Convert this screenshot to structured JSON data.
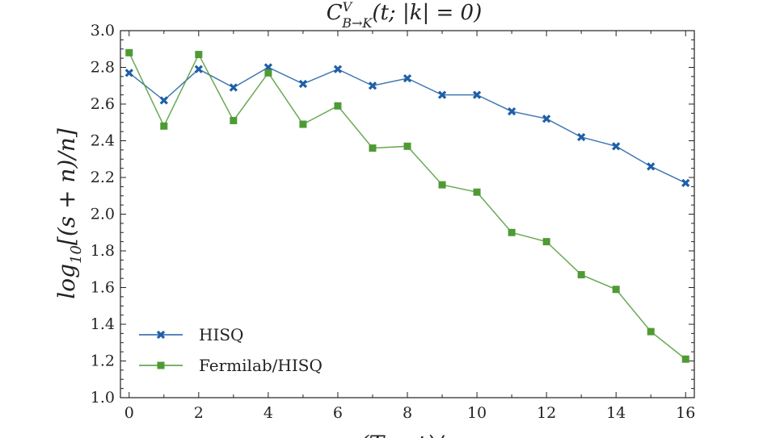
{
  "chart_data": {
    "type": "line",
    "title": "C^V_{B→K}(t; |k|=0)",
    "title_main": "C",
    "title_sup": "V",
    "title_sub": "B→K",
    "title_args": "(t; |k| = 0)",
    "xlabel": "(T − t)/a",
    "ylabel": "log10[(s+n)/n]",
    "ylabel_main": "log",
    "ylabel_sub": "10",
    "ylabel_rest": "[(s + n)/n]",
    "xlim": [
      -0.25,
      16.25
    ],
    "ylim": [
      1.0,
      3.0
    ],
    "xticks": [
      0,
      2,
      4,
      6,
      8,
      10,
      12,
      14,
      16
    ],
    "yticks": [
      1.0,
      1.2,
      1.4,
      1.6,
      1.8,
      2.0,
      2.2,
      2.4,
      2.6,
      2.8,
      3.0
    ],
    "grid": false,
    "legend_position": "bottom-left",
    "x": [
      0,
      1,
      2,
      3,
      4,
      5,
      6,
      7,
      8,
      9,
      10,
      11,
      12,
      13,
      14,
      15,
      16
    ],
    "series": [
      {
        "name": "HISQ",
        "color": "#1f5fa8",
        "marker": "x",
        "values": [
          2.77,
          2.62,
          2.79,
          2.69,
          2.8,
          2.71,
          2.79,
          2.7,
          2.74,
          2.65,
          2.65,
          2.56,
          2.52,
          2.42,
          2.37,
          2.26,
          2.17
        ]
      },
      {
        "name": "Fermilab/HISQ",
        "color": "#4f9a35",
        "marker": "square",
        "values": [
          2.88,
          2.48,
          2.87,
          2.51,
          2.77,
          2.49,
          2.59,
          2.36,
          2.37,
          2.16,
          2.12,
          1.9,
          1.85,
          1.67,
          1.59,
          1.36,
          1.21
        ]
      }
    ]
  }
}
